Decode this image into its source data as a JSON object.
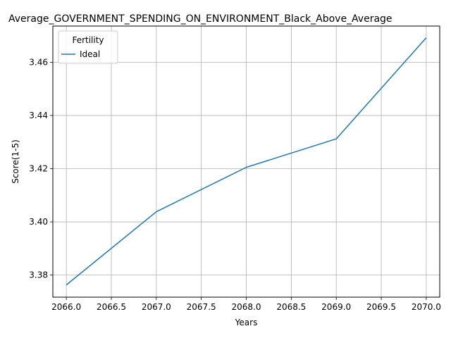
{
  "chart_data": {
    "type": "line",
    "title": "Average_GOVERNMENT_SPENDING_ON_ENVIRONMENT_Black_Above_Average",
    "xlabel": "Years",
    "ylabel": "Score(1-5)",
    "xlim": [
      2065.85,
      2070.15
    ],
    "ylim": [
      3.3717,
      3.4736
    ],
    "x_ticks": [
      "2066.0",
      "2066.5",
      "2067.0",
      "2067.5",
      "2068.0",
      "2068.5",
      "2069.0",
      "2069.5",
      "2070.0"
    ],
    "x_tick_values": [
      2066.0,
      2066.5,
      2067.0,
      2067.5,
      2068.0,
      2068.5,
      2069.0,
      2069.5,
      2070.0
    ],
    "y_ticks": [
      "3.38",
      "3.40",
      "3.42",
      "3.44",
      "3.46"
    ],
    "y_tick_values": [
      3.38,
      3.4,
      3.42,
      3.44,
      3.46
    ],
    "grid": true,
    "legend": {
      "title": "Fertility",
      "position": "top-left"
    },
    "series": [
      {
        "name": "Ideal",
        "color": "#1f77b4",
        "x": [
          2066,
          2067,
          2068,
          2069,
          2070
        ],
        "y": [
          3.3763,
          3.4038,
          3.4205,
          3.4312,
          3.4692
        ]
      }
    ]
  }
}
